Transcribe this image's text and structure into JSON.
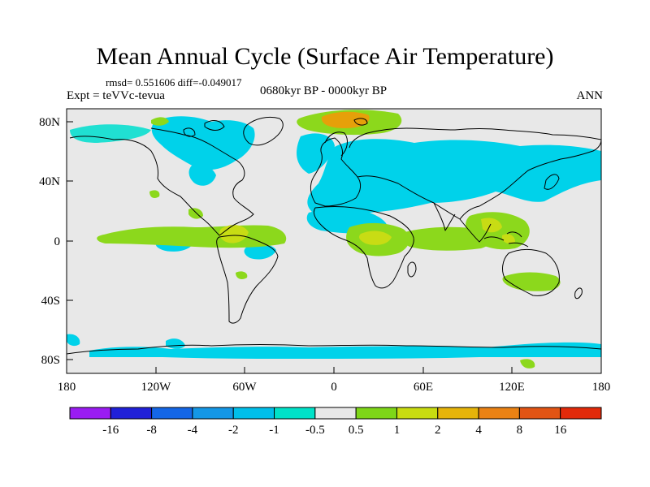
{
  "title": "Mean Annual Cycle (Surface Air Temperature)",
  "stats": {
    "rmsd_label": "rmsd=",
    "rmsd_value": "0.551606",
    "diff_label": "diff=",
    "diff_value": "-0.049017"
  },
  "experiment": "Expt = teVVc-tevua",
  "period": "0680kyr BP - 0000kyr BP",
  "season": "ANN",
  "lat_labels": [
    "80N",
    "40N",
    "0",
    "40S",
    "80S"
  ],
  "lon_labels": [
    "180",
    "120W",
    "60W",
    "0",
    "60E",
    "120E",
    "180"
  ],
  "colorbar": {
    "labels": [
      "-16",
      "-8",
      "-4",
      "-2",
      "-1",
      "-0.5",
      "0.5",
      "1",
      "2",
      "4",
      "8",
      "16"
    ],
    "colors": [
      "#9a1cf2",
      "#2020d8",
      "#1466e6",
      "#1497e6",
      "#00bfea",
      "#00e2c8",
      "#e8e8e8",
      "#7ed618",
      "#c8dc10",
      "#e6b40a",
      "#ea8214",
      "#e25414",
      "#e22a0a"
    ]
  },
  "colors": {
    "land_bg": "#e8e8e8",
    "cool": "#00d2ea",
    "cool_light": "#20e0d2",
    "warm": "#8cd81c",
    "warm_strong": "#c8dc14",
    "hot": "#e6a00a",
    "coast": "#000000"
  }
}
